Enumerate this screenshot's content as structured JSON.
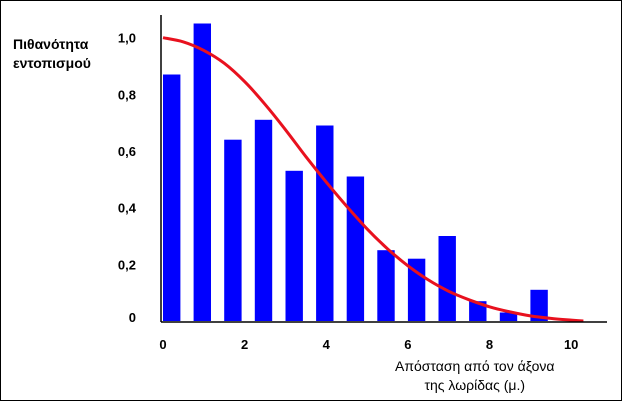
{
  "chart_data": {
    "type": "bar",
    "ylabel_lines": [
      "Πιθανότητα",
      "εντοπισμού"
    ],
    "xlabel_lines": [
      "Απόσταση από τον άξονα",
      "της λωρίδας (μ.)"
    ],
    "x_ticks": [
      0,
      2,
      4,
      6,
      8,
      10
    ],
    "x_tick_labels": [
      "0",
      "2",
      "4",
      "6",
      "8",
      "10"
    ],
    "y_ticks": [
      0,
      0.2,
      0.4,
      0.6,
      0.8,
      1.0
    ],
    "y_tick_labels": [
      "0",
      "0,2",
      "0,4",
      "0,6",
      "0,8",
      "1,0"
    ],
    "xlim": [
      0,
      11
    ],
    "ylim": [
      0,
      1.08
    ],
    "bar_width": 0.5,
    "bar_color": "#0000ff",
    "curve_color": "#e8111e",
    "series": [
      {
        "type": "bar",
        "x": [
          0.25,
          1.0,
          1.75,
          2.5,
          3.25,
          4.0,
          4.75,
          5.5,
          6.25,
          7.0,
          7.75,
          8.5,
          9.25
        ],
        "values": [
          0.87,
          1.05,
          0.64,
          0.71,
          0.53,
          0.69,
          0.51,
          0.25,
          0.22,
          0.3,
          0.07,
          0.03,
          0.11
        ]
      },
      {
        "type": "line",
        "x": [
          0,
          0.5,
          1,
          1.5,
          2,
          2.5,
          3,
          3.5,
          4,
          4.5,
          5,
          5.5,
          6,
          6.5,
          7,
          7.5,
          8,
          8.5,
          9,
          9.5,
          10,
          10.3
        ],
        "values": [
          1.0,
          0.985,
          0.955,
          0.91,
          0.845,
          0.765,
          0.675,
          0.58,
          0.49,
          0.405,
          0.325,
          0.255,
          0.195,
          0.145,
          0.105,
          0.075,
          0.05,
          0.032,
          0.018,
          0.009,
          0.003,
          0.0
        ]
      }
    ]
  }
}
